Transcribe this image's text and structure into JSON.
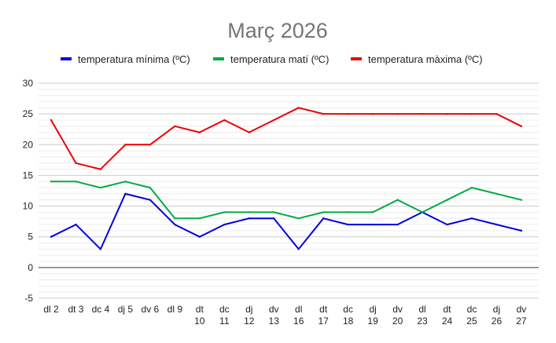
{
  "chart_data": {
    "type": "line",
    "title": "Març 2026",
    "xlabel": "",
    "ylabel": "",
    "ylim": [
      -5,
      30
    ],
    "yticks": [
      -5,
      0,
      5,
      10,
      15,
      20,
      25,
      30
    ],
    "minor_step": 1,
    "grid": true,
    "legend_position": "top",
    "categories": [
      [
        "dl 2"
      ],
      [
        "dt 3"
      ],
      [
        "dc 4"
      ],
      [
        "dj 5"
      ],
      [
        "dv 6"
      ],
      [
        "dl 9"
      ],
      [
        "dt",
        "10"
      ],
      [
        "dc",
        "11"
      ],
      [
        "dj",
        "12"
      ],
      [
        "dv",
        "13"
      ],
      [
        "dl",
        "16"
      ],
      [
        "dt",
        "17"
      ],
      [
        "dc",
        "18"
      ],
      [
        "dj",
        "19"
      ],
      [
        "dv",
        "20"
      ],
      [
        "dl",
        "23"
      ],
      [
        "dt",
        "24"
      ],
      [
        "dc",
        "25"
      ],
      [
        "dj",
        "26"
      ],
      [
        "dv",
        "27"
      ]
    ],
    "series": [
      {
        "name": "temperatura mínima (ºC)",
        "color": "#0000dd",
        "values": [
          5,
          7,
          3,
          12,
          11,
          7,
          5,
          7,
          8,
          8,
          3,
          8,
          7,
          7,
          7,
          9,
          7,
          8,
          7,
          6
        ]
      },
      {
        "name": "temperatura matí (ºC)",
        "color": "#00aa44",
        "values": [
          14,
          14,
          13,
          14,
          13,
          8,
          8,
          9,
          9,
          9,
          8,
          9,
          9,
          9,
          11,
          9,
          11,
          13,
          12,
          11
        ]
      },
      {
        "name": "temperatura màxima (ºC)",
        "color": "#ee0000",
        "values": [
          24,
          17,
          16,
          20,
          20,
          23,
          22,
          24,
          22,
          24,
          26,
          25,
          25,
          25,
          25,
          25,
          25,
          25,
          25,
          23
        ]
      }
    ]
  }
}
